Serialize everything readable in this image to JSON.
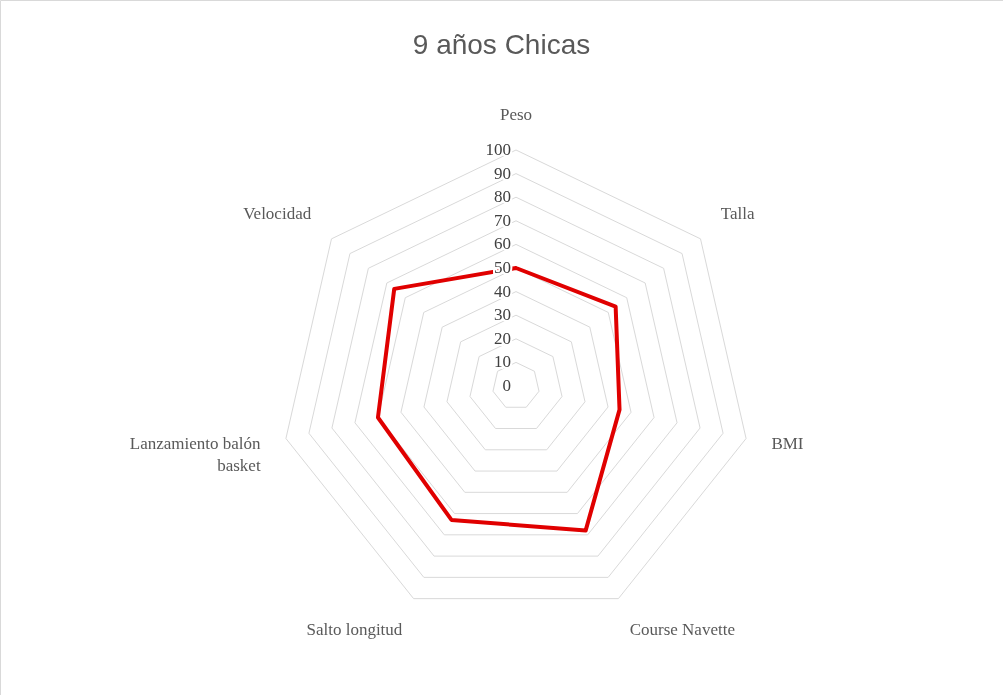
{
  "chart_data": {
    "type": "radar",
    "title": "9 años Chicas",
    "categories": [
      "Peso",
      "Talla",
      "BMI",
      "Course Navette",
      "Salto longitud",
      "Lanzamiento balón basket",
      "Velocidad"
    ],
    "series": [
      {
        "color": "#e00000",
        "values": [
          50,
          54,
          45,
          68,
          63,
          60,
          66
        ]
      }
    ],
    "ylim": [
      0,
      100
    ],
    "yticks": [
      0,
      10,
      20,
      30,
      40,
      50,
      60,
      70,
      80,
      90,
      100
    ],
    "grid": true
  }
}
